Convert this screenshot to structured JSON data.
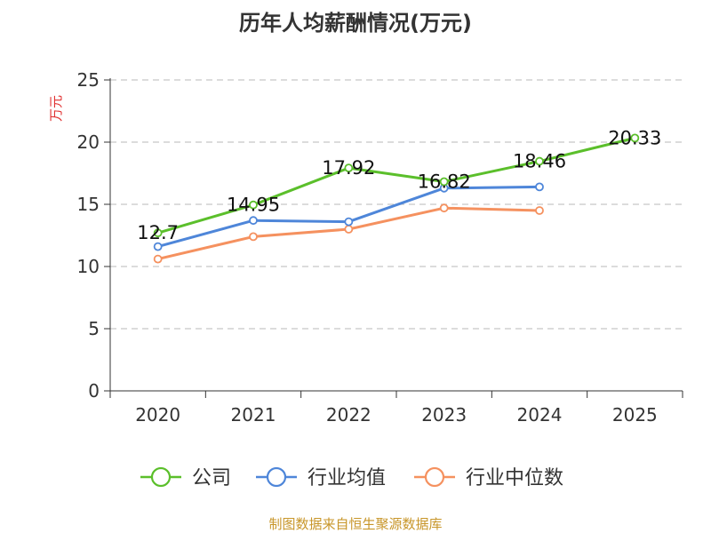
{
  "chart_data": {
    "type": "line",
    "title": "历年人均薪酬情况(万元)",
    "ylabel": "万元",
    "xlabel": "",
    "categories": [
      "2020",
      "2021",
      "2022",
      "2023",
      "2024",
      "2025"
    ],
    "ylim": [
      0,
      25
    ],
    "yticks": [
      "0",
      "5",
      "10",
      "15",
      "20",
      "25"
    ],
    "grid": true,
    "series": [
      {
        "name": "公司",
        "color": "#5bbf2b",
        "values": [
          12.7,
          14.95,
          17.92,
          16.82,
          18.46,
          20.33
        ],
        "labels": [
          "12.7",
          "14.95",
          "17.92",
          "16.82",
          "18.46",
          "20.33"
        ]
      },
      {
        "name": "行业均值",
        "color": "#4e86d9",
        "values": [
          11.6,
          13.7,
          13.6,
          16.3,
          16.4,
          null
        ]
      },
      {
        "name": "行业中位数",
        "color": "#f5915f",
        "values": [
          10.6,
          12.4,
          13.0,
          14.7,
          14.5,
          null
        ]
      }
    ],
    "legend_position": "bottom",
    "source": "制图数据来自恒生聚源数据库"
  },
  "colors": {
    "axis": "#333333",
    "grid": "#c8c8c8",
    "ylabel": "#e03030",
    "source": "#c8962a"
  }
}
